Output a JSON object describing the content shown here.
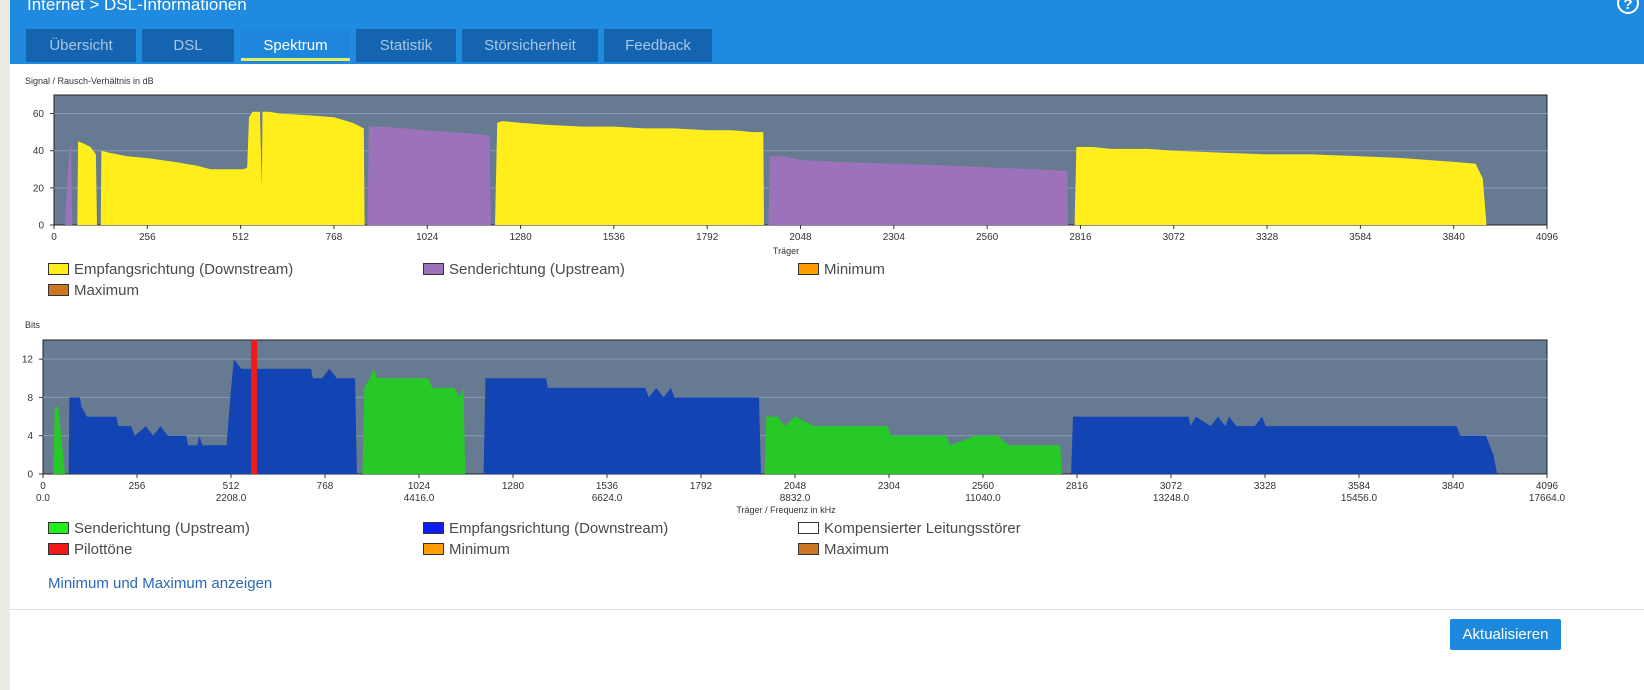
{
  "header": {
    "breadcrumb": "Internet > DSL-Informationen",
    "help": "?"
  },
  "tabs": [
    {
      "label": "Übersicht",
      "active": false
    },
    {
      "label": "DSL",
      "active": false
    },
    {
      "label": "Spektrum",
      "active": true
    },
    {
      "label": "Statistik",
      "active": false
    },
    {
      "label": "Störsicherheit",
      "active": false
    },
    {
      "label": "Feedback",
      "active": false
    }
  ],
  "colors": {
    "downstream_snr": "#ffee1c",
    "upstream_snr": "#9c73bb",
    "upstream_bits": "#26c928",
    "downstream_bits": "#1244b4",
    "pilot": "#f01a1a",
    "minimum": "#ff9c00",
    "maximum": "#cc7722",
    "plot_background": "#667b91"
  },
  "chart_data": [
    {
      "type": "area",
      "title": "Signal / Rausch-Verhältnis in dB",
      "xlabel": "Träger",
      "ylabel": "Signal / Rausch-Verhältnis in dB",
      "xlim": [
        0,
        4096
      ],
      "ylim": [
        0,
        70
      ],
      "x_ticks": [
        0,
        256,
        512,
        768,
        1024,
        1280,
        1536,
        1792,
        2048,
        2304,
        2560,
        2816,
        3072,
        3328,
        3584,
        3840,
        4096
      ],
      "y_ticks": [
        0,
        20,
        40,
        60
      ],
      "grid": true,
      "series": [
        {
          "name": "Senderichtung (Upstream)",
          "segments": [
            [
              [
                30,
                0
              ],
              [
                36,
                20
              ],
              [
                42,
                40
              ],
              [
                47,
                44
              ],
              [
                50,
                0
              ]
            ],
            [
              [
                860,
                0
              ],
              [
                864,
                53
              ],
              [
                900,
                53
              ],
              [
                960,
                52
              ],
              [
                1020,
                51
              ],
              [
                1090,
                50
              ],
              [
                1160,
                49
              ],
              [
                1195,
                48
              ],
              [
                1198,
                0
              ]
            ],
            [
              [
                1960,
                0
              ],
              [
                1964,
                37
              ],
              [
                2000,
                37
              ],
              [
                2048,
                35
              ],
              [
                2150,
                34
              ],
              [
                2304,
                33
              ],
              [
                2450,
                32
              ],
              [
                2560,
                31
              ],
              [
                2700,
                30
              ],
              [
                2780,
                29
              ],
              [
                2782,
                0
              ]
            ]
          ]
        },
        {
          "name": "Empfangsrichtung (Downstream)",
          "segments": [
            [
              [
                64,
                0
              ],
              [
                66,
                45
              ],
              [
                80,
                44
              ],
              [
                100,
                42
              ],
              [
                115,
                38
              ],
              [
                118,
                0
              ],
              [
                128,
                0
              ],
              [
                130,
                40
              ],
              [
                150,
                39
              ],
              [
                200,
                37
              ],
              [
                256,
                36
              ],
              [
                330,
                34
              ],
              [
                390,
                32
              ],
              [
                430,
                30
              ],
              [
                470,
                30
              ],
              [
                520,
                30
              ],
              [
                530,
                31
              ],
              [
                535,
                58
              ],
              [
                545,
                61
              ],
              [
                565,
                61
              ],
              [
                570,
                20
              ],
              [
                572,
                61
              ],
              [
                590,
                61
              ],
              [
                620,
                60
              ],
              [
                700,
                59
              ],
              [
                768,
                58
              ],
              [
                820,
                55
              ],
              [
                850,
                52
              ],
              [
                852,
                0
              ]
            ],
            [
              [
                1210,
                0
              ],
              [
                1216,
                55
              ],
              [
                1230,
                56
              ],
              [
                1280,
                55
              ],
              [
                1350,
                54
              ],
              [
                1450,
                53
              ],
              [
                1536,
                53
              ],
              [
                1620,
                52
              ],
              [
                1700,
                52
              ],
              [
                1792,
                51
              ],
              [
                1860,
                51
              ],
              [
                1920,
                50
              ],
              [
                1946,
                50
              ],
              [
                1948,
                0
              ]
            ],
            [
              [
                2800,
                0
              ],
              [
                2805,
                42
              ],
              [
                2850,
                42
              ],
              [
                2900,
                41
              ],
              [
                3000,
                41
              ],
              [
                3072,
                40
              ],
              [
                3200,
                39
              ],
              [
                3328,
                38
              ],
              [
                3450,
                38
              ],
              [
                3584,
                37
              ],
              [
                3700,
                36
              ],
              [
                3840,
                34
              ],
              [
                3900,
                33
              ],
              [
                3920,
                25
              ],
              [
                3930,
                0
              ]
            ]
          ]
        }
      ],
      "legend": [
        "Empfangsrichtung (Downstream)",
        "Senderichtung (Upstream)",
        "Minimum",
        "Maximum"
      ]
    },
    {
      "type": "area",
      "title": "Bits",
      "xlabel": "Träger / Frequenz in kHz",
      "ylabel": "Bits",
      "xlim": [
        0,
        4096
      ],
      "ylim": [
        0,
        14
      ],
      "x_ticks": [
        0,
        256,
        512,
        768,
        1024,
        1280,
        1536,
        1792,
        2048,
        2304,
        2560,
        2816,
        3072,
        3328,
        3584,
        3840,
        4096
      ],
      "freq_ticks": [
        {
          "x": 0,
          "label": "0.0"
        },
        {
          "x": 512,
          "label": "2208.0"
        },
        {
          "x": 1024,
          "label": "4416.0"
        },
        {
          "x": 1536,
          "label": "6624.0"
        },
        {
          "x": 2048,
          "label": "8832.0"
        },
        {
          "x": 2560,
          "label": "11040.0"
        },
        {
          "x": 3072,
          "label": "13248.0"
        },
        {
          "x": 3584,
          "label": "15456.0"
        },
        {
          "x": 4096,
          "label": "17664.0"
        }
      ],
      "y_ticks": [
        0,
        4,
        8,
        12
      ],
      "grid": true,
      "pilot_tone": 575,
      "series": [
        {
          "name": "Senderichtung (Upstream)",
          "segments": [
            [
              [
                28,
                0
              ],
              [
                32,
                7
              ],
              [
                42,
                7
              ],
              [
                44,
                6
              ],
              [
                60,
                0
              ]
            ],
            [
              [
                870,
                0
              ],
              [
                875,
                9
              ],
              [
                890,
                10
              ],
              [
                900,
                11
              ],
              [
                910,
                10
              ],
              [
                1050,
                10
              ],
              [
                1060,
                9
              ],
              [
                1120,
                9
              ],
              [
                1135,
                8
              ],
              [
                1145,
                9
              ],
              [
                1150,
                0
              ]
            ],
            [
              [
                1965,
                0
              ],
              [
                1970,
                6
              ],
              [
                2000,
                6
              ],
              [
                2020,
                5
              ],
              [
                2048,
                6
              ],
              [
                2100,
                5
              ],
              [
                2300,
                5
              ],
              [
                2310,
                4
              ],
              [
                2460,
                4
              ],
              [
                2470,
                3
              ],
              [
                2540,
                4
              ],
              [
                2600,
                4
              ],
              [
                2630,
                3
              ],
              [
                2770,
                3
              ],
              [
                2775,
                0
              ]
            ]
          ]
        },
        {
          "name": "Empfangsrichtung (Downstream)",
          "segments": [
            [
              [
                70,
                0
              ],
              [
                72,
                8
              ],
              [
                100,
                8
              ],
              [
                105,
                7
              ],
              [
                120,
                6
              ],
              [
                200,
                6
              ],
              [
                205,
                5
              ],
              [
                240,
                5
              ],
              [
                250,
                4
              ],
              [
                280,
                5
              ],
              [
                300,
                4
              ],
              [
                320,
                5
              ],
              [
                340,
                4
              ],
              [
                390,
                4
              ],
              [
                395,
                3
              ],
              [
                420,
                3
              ],
              [
                425,
                4
              ],
              [
                435,
                3
              ],
              [
                500,
                3
              ],
              [
                510,
                8
              ],
              [
                520,
                12
              ],
              [
                540,
                11
              ],
              [
                730,
                11
              ],
              [
                735,
                10
              ],
              [
                760,
                10
              ],
              [
                780,
                11
              ],
              [
                800,
                10
              ],
              [
                850,
                10
              ],
              [
                855,
                0
              ]
            ],
            [
              [
                1200,
                0
              ],
              [
                1205,
                10
              ],
              [
                1370,
                10
              ],
              [
                1375,
                9
              ],
              [
                1640,
                9
              ],
              [
                1650,
                8
              ],
              [
                1670,
                9
              ],
              [
                1690,
                8
              ],
              [
                1710,
                9
              ],
              [
                1720,
                8
              ],
              [
                1950,
                8
              ],
              [
                1955,
                0
              ]
            ],
            [
              [
                2800,
                0
              ],
              [
                2805,
                6
              ],
              [
                3120,
                6
              ],
              [
                3125,
                5
              ],
              [
                3140,
                6
              ],
              [
                3180,
                5
              ],
              [
                3200,
                6
              ],
              [
                3220,
                5
              ],
              [
                3230,
                6
              ],
              [
                3250,
                5
              ],
              [
                3300,
                5
              ],
              [
                3320,
                6
              ],
              [
                3330,
                5
              ],
              [
                3850,
                5
              ],
              [
                3860,
                4
              ],
              [
                3930,
                4
              ],
              [
                3950,
                2
              ],
              [
                3960,
                0
              ]
            ]
          ]
        }
      ],
      "legend": [
        "Senderichtung (Upstream)",
        "Empfangsrichtung (Downstream)",
        "Kompensierter Leitungsstörer",
        "Pilottöne",
        "Minimum",
        "Maximum"
      ]
    }
  ],
  "links": {
    "minmax": "Minimum und Maximum anzeigen"
  },
  "buttons": {
    "refresh": "Aktualisieren"
  }
}
